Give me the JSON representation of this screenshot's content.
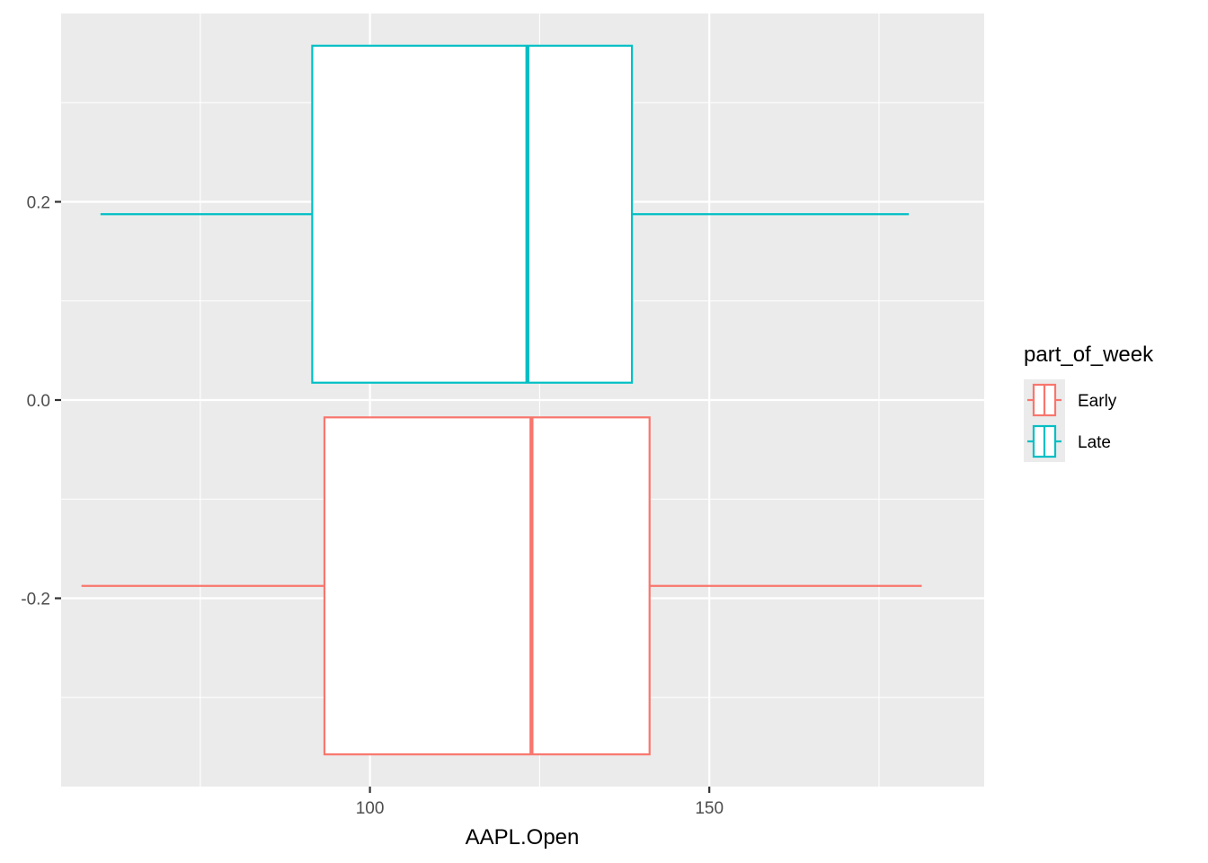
{
  "chart_data": {
    "type": "boxplot",
    "orientation": "horizontal",
    "title": "",
    "xlabel": "AAPL.Open",
    "ylabel": "",
    "xlim": [
      54.5,
      190.5
    ],
    "ylim": [
      -0.39,
      0.39
    ],
    "x_ticks": [
      {
        "value": 100,
        "label": "100"
      },
      {
        "value": 150,
        "label": "150"
      }
    ],
    "x_minor_ticks": [
      75,
      125,
      175
    ],
    "y_ticks": [
      {
        "value": 0.2,
        "label": "0.2"
      },
      {
        "value": 0.0,
        "label": "0.0"
      },
      {
        "value": -0.2,
        "label": "-0.2"
      }
    ],
    "y_minor_ticks": [
      0.3,
      0.1,
      -0.1,
      -0.3
    ],
    "grid": true,
    "legend": {
      "title": "part_of_week",
      "position": "right"
    },
    "series": [
      {
        "name": "Early",
        "color": "#F8766D",
        "whisker_low": 57.5,
        "q1": 93.3,
        "median": 123.8,
        "q3": 141.2,
        "whisker_high": 181.3,
        "y_position": -0.1875,
        "band": [
          -0.3575,
          -0.0175
        ]
      },
      {
        "name": "Late",
        "color": "#00BFC4",
        "whisker_low": 60.3,
        "q1": 91.5,
        "median": 123.2,
        "q3": 138.6,
        "whisker_high": 179.4,
        "y_position": 0.1875,
        "band": [
          0.0175,
          0.3575
        ]
      }
    ]
  }
}
